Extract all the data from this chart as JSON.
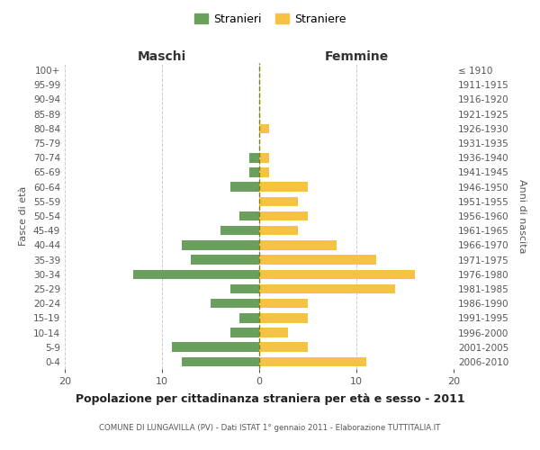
{
  "age_groups": [
    "100+",
    "95-99",
    "90-94",
    "85-89",
    "80-84",
    "75-79",
    "70-74",
    "65-69",
    "60-64",
    "55-59",
    "50-54",
    "45-49",
    "40-44",
    "35-39",
    "30-34",
    "25-29",
    "20-24",
    "15-19",
    "10-14",
    "5-9",
    "0-4"
  ],
  "birth_years": [
    "≤ 1910",
    "1911-1915",
    "1916-1920",
    "1921-1925",
    "1926-1930",
    "1931-1935",
    "1936-1940",
    "1941-1945",
    "1946-1950",
    "1951-1955",
    "1956-1960",
    "1961-1965",
    "1966-1970",
    "1971-1975",
    "1976-1980",
    "1981-1985",
    "1986-1990",
    "1991-1995",
    "1996-2000",
    "2001-2005",
    "2006-2010"
  ],
  "maschi": [
    0,
    0,
    0,
    0,
    0,
    0,
    1,
    1,
    3,
    0,
    2,
    4,
    8,
    7,
    13,
    3,
    5,
    2,
    3,
    9,
    8
  ],
  "femmine": [
    0,
    0,
    0,
    0,
    1,
    0,
    1,
    1,
    5,
    4,
    5,
    4,
    8,
    12,
    16,
    14,
    5,
    5,
    3,
    5,
    11
  ],
  "color_maschi": "#6a9f5e",
  "color_femmine": "#f5c242",
  "title": "Popolazione per cittadinanza straniera per età e sesso - 2011",
  "subtitle": "COMUNE DI LUNGAVILLA (PV) - Dati ISTAT 1° gennaio 2011 - Elaborazione TUTTITALIA.IT",
  "xlabel_left": "Maschi",
  "xlabel_right": "Femmine",
  "ylabel_left": "Fasce di età",
  "ylabel_right": "Anni di nascita",
  "legend_stranieri": "Stranieri",
  "legend_straniere": "Straniere",
  "xlim": 20,
  "background_color": "#ffffff",
  "grid_color": "#cccccc"
}
